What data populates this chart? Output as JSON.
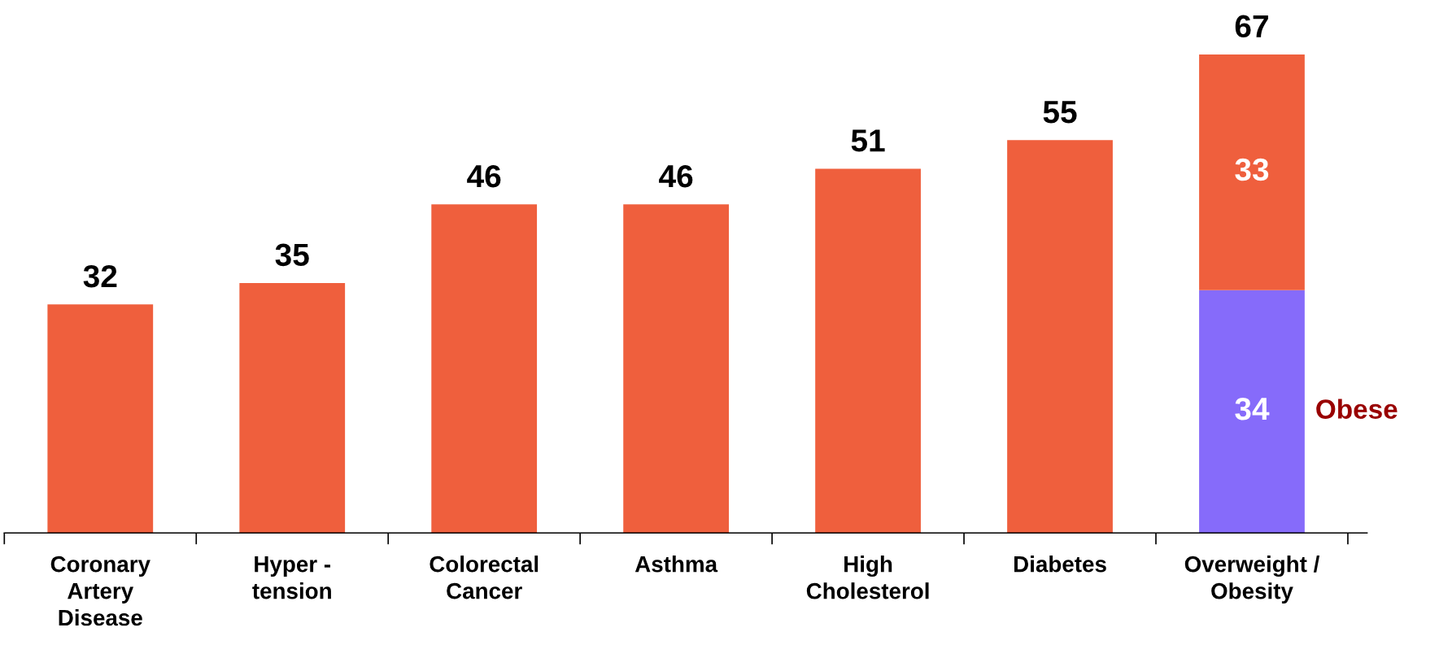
{
  "chart_data": {
    "type": "bar",
    "stacked": true,
    "categories": [
      "Coronary\nArtery\nDisease",
      "Hyper -\ntension",
      "Colorectal\nCancer",
      "Asthma",
      "High\nCholesterol",
      "Diabetes",
      "Overweight /\nObesity"
    ],
    "series": [
      {
        "name": "Obese",
        "color": "#866bfa",
        "values": [
          null,
          null,
          null,
          null,
          null,
          null,
          34
        ]
      },
      {
        "color": "#ef5f3d",
        "values": [
          32,
          35,
          46,
          46,
          51,
          55,
          33
        ]
      }
    ],
    "data_labels": true,
    "totals": [
      null,
      null,
      null,
      null,
      null,
      null,
      "67"
    ],
    "legend": false,
    "grid": false
  }
}
